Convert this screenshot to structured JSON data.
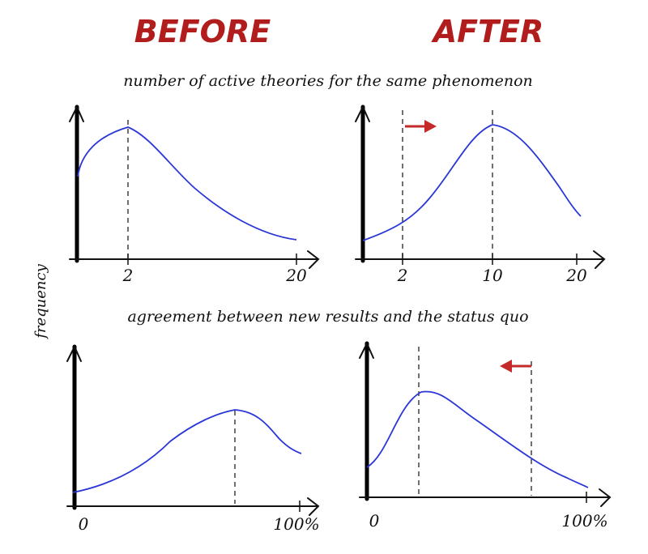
{
  "headers": {
    "before": "BEFORE",
    "after": "AFTER"
  },
  "rows": [
    {
      "subtitle": "number of active theories for the same phenomenon",
      "before_ticks": [
        "2",
        "20"
      ],
      "after_ticks": [
        "2",
        "10",
        "20"
      ],
      "shift": "right"
    },
    {
      "subtitle": "agreement between new results and the status quo",
      "before_ticks": [
        "0",
        "100%"
      ],
      "after_ticks": [
        "0",
        "100%"
      ],
      "shift": "left"
    }
  ],
  "ylabel": "frequency",
  "colors": {
    "heading": "#b11d1d",
    "curve": "#2a37d6",
    "shift_arrow": "#c42a2a",
    "axis": "#111111"
  }
}
